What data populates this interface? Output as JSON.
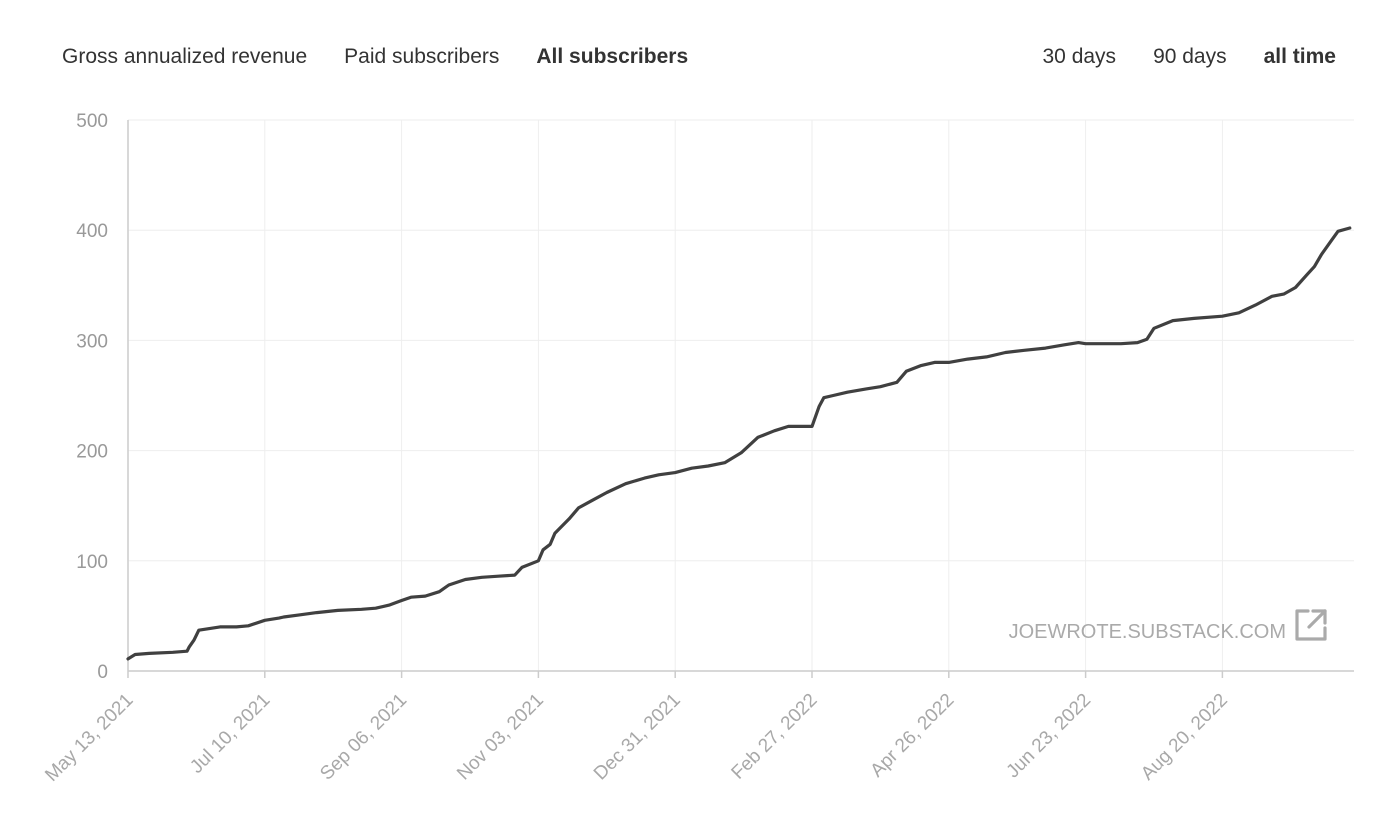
{
  "metric_tabs": [
    {
      "label": "Gross annualized revenue",
      "active": false
    },
    {
      "label": "Paid subscribers",
      "active": false
    },
    {
      "label": "All subscribers",
      "active": true
    }
  ],
  "range_tabs": [
    {
      "label": "30 days",
      "active": false
    },
    {
      "label": "90 days",
      "active": false
    },
    {
      "label": "all time",
      "active": true
    }
  ],
  "watermark": {
    "text": "JOEWROTE.SUBSTACK.COM",
    "icon": "external-link-icon"
  },
  "colors": {
    "line": "#404040",
    "grid": "#eeeeee",
    "axis": "#cccccc",
    "tick_text": "#999999"
  },
  "chart_data": {
    "type": "line",
    "title": "",
    "xlabel": "",
    "ylabel": "",
    "ylim": [
      0,
      500
    ],
    "xlim": [
      "2021-05-13",
      "2022-10-13"
    ],
    "y_ticks": [
      0,
      100,
      200,
      300,
      400,
      500
    ],
    "x_tick_labels": [
      "May 13, 2021",
      "Jul 10, 2021",
      "Sep 06, 2021",
      "Nov 03, 2021",
      "Dec 31, 2021",
      "Feb 27, 2022",
      "Apr 26, 2022",
      "Jun 23, 2022",
      "Aug 20, 2022"
    ],
    "x_tick_dates": [
      "2021-05-13",
      "2021-07-10",
      "2021-09-06",
      "2021-11-03",
      "2021-12-31",
      "2022-02-27",
      "2022-04-26",
      "2022-06-23",
      "2022-08-20"
    ],
    "grid": true,
    "series": [
      {
        "x": [
          "2021-05-13",
          "2021-05-16",
          "2021-05-22",
          "2021-06-01",
          "2021-06-07",
          "2021-06-08",
          "2021-06-10",
          "2021-06-12",
          "2021-06-21",
          "2021-06-28",
          "2021-07-03",
          "2021-07-10",
          "2021-07-16",
          "2021-07-18",
          "2021-07-25",
          "2021-08-01",
          "2021-08-10",
          "2021-08-20",
          "2021-08-26",
          "2021-09-01",
          "2021-09-06",
          "2021-09-10",
          "2021-09-16",
          "2021-09-22",
          "2021-09-26",
          "2021-10-03",
          "2021-10-10",
          "2021-10-17",
          "2021-10-24",
          "2021-10-27",
          "2021-11-03",
          "2021-11-05",
          "2021-11-08",
          "2021-11-10",
          "2021-11-16",
          "2021-11-20",
          "2021-11-26",
          "2021-12-02",
          "2021-12-10",
          "2021-12-18",
          "2021-12-24",
          "2021-12-31",
          "2022-01-07",
          "2022-01-14",
          "2022-01-21",
          "2022-01-28",
          "2022-02-04",
          "2022-02-11",
          "2022-02-17",
          "2022-02-27",
          "2022-03-02",
          "2022-03-04",
          "2022-03-08",
          "2022-03-14",
          "2022-03-22",
          "2022-03-28",
          "2022-04-04",
          "2022-04-08",
          "2022-04-14",
          "2022-04-20",
          "2022-04-26",
          "2022-05-04",
          "2022-05-12",
          "2022-05-20",
          "2022-05-28",
          "2022-06-06",
          "2022-06-14",
          "2022-06-20",
          "2022-06-23",
          "2022-07-01",
          "2022-07-08",
          "2022-07-15",
          "2022-07-19",
          "2022-07-22",
          "2022-07-30",
          "2022-08-08",
          "2022-08-20",
          "2022-08-27",
          "2022-09-03",
          "2022-09-10",
          "2022-09-15",
          "2022-09-20",
          "2022-09-25",
          "2022-09-28",
          "2022-10-01",
          "2022-10-05",
          "2022-10-08",
          "2022-10-13"
        ],
        "y": [
          11,
          15,
          16,
          17,
          18,
          22,
          28,
          37,
          40,
          40,
          41,
          46,
          48,
          49,
          51,
          53,
          55,
          56,
          57,
          60,
          64,
          67,
          68,
          72,
          78,
          83,
          85,
          86,
          87,
          94,
          100,
          110,
          115,
          125,
          138,
          148,
          155,
          162,
          170,
          175,
          178,
          180,
          184,
          186,
          189,
          198,
          212,
          218,
          222,
          222,
          240,
          248,
          250,
          253,
          256,
          258,
          262,
          272,
          277,
          280,
          280,
          283,
          285,
          289,
          291,
          293,
          296,
          298,
          297,
          297,
          297,
          298,
          301,
          311,
          318,
          320,
          322,
          325,
          332,
          340,
          342,
          348,
          360,
          367,
          378,
          390,
          399,
          402
        ]
      }
    ]
  }
}
